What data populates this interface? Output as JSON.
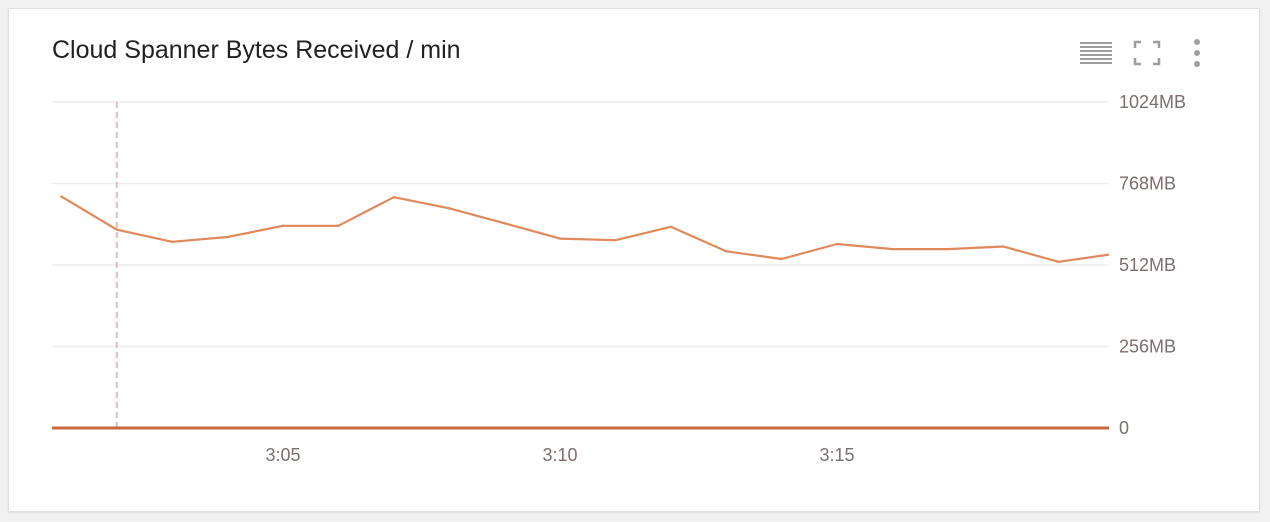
{
  "header": {
    "title": "Cloud Spanner Bytes Received / min",
    "icons": [
      "legend-list-icon",
      "fullscreen-icon",
      "more-vert-icon"
    ]
  },
  "colors": {
    "series": "#e0895a",
    "baseline": "#c8693b",
    "grid": "#ececec",
    "cursor": "#e7b9b9",
    "tick_text": "#7e6e6e",
    "icon": "#9e9e9e"
  },
  "chart_data": {
    "type": "line",
    "title": "Cloud Spanner Bytes Received / min",
    "xlabel": "",
    "ylabel": "",
    "x_ticks": [
      "3:05",
      "3:10",
      "3:15"
    ],
    "y_ticks": [
      "1024MB",
      "768MB",
      "512MB",
      "256MB",
      "0"
    ],
    "y_tick_values": [
      1024,
      768,
      512,
      256,
      0
    ],
    "ylim": [
      0,
      1024
    ],
    "y_unit": "MB",
    "grid": true,
    "y_axis_side": "right",
    "series": [
      {
        "x": [
          "3:01",
          "3:02",
          "3:03",
          "3:04",
          "3:05",
          "3:06",
          "3:07",
          "3:08",
          "3:09",
          "3:10",
          "3:11",
          "3:12",
          "3:13",
          "3:14",
          "3:15",
          "3:16",
          "3:17",
          "3:18",
          "3:19",
          "3:20"
        ],
        "values": [
          727,
          623,
          585,
          600,
          635,
          635,
          725,
          690,
          643,
          595,
          590,
          632,
          555,
          531,
          578,
          562,
          562,
          570,
          522,
          547
        ]
      },
      {
        "x": [
          "3:00",
          "3:20"
        ],
        "values": [
          0,
          0
        ]
      }
    ],
    "cursor_x": "3:02"
  }
}
